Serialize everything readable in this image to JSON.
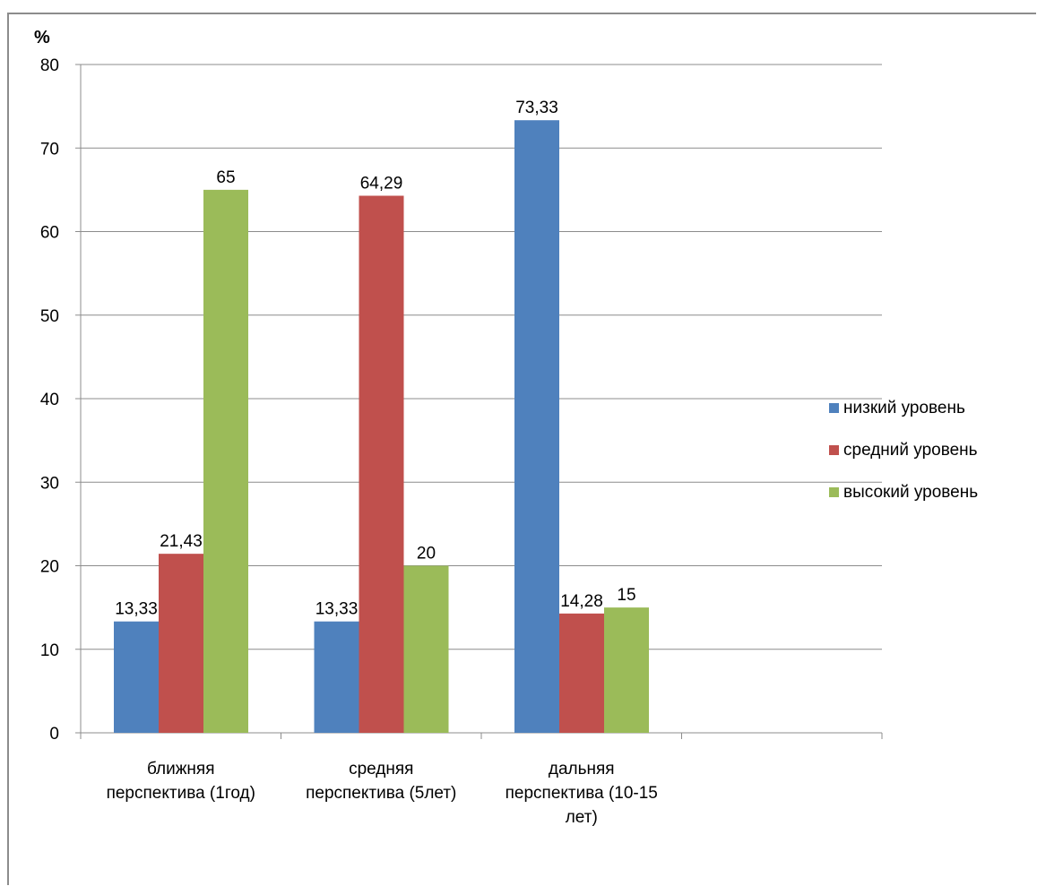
{
  "chart_data": {
    "type": "bar",
    "ylabel": "%",
    "ylim": [
      0,
      80
    ],
    "yticks": [
      0,
      10,
      20,
      30,
      40,
      50,
      60,
      70,
      80
    ],
    "grid": true,
    "legend_position": "right",
    "categories": [
      [
        "ближняя",
        "перспектива (1год)"
      ],
      [
        "средняя",
        "перспектива (5лет)"
      ],
      [
        "дальняя",
        "перспектива (10-15",
        "лет)"
      ]
    ],
    "empty_category_slots": 1,
    "series": [
      {
        "name": "низкий уровень",
        "color": "#4f81bd",
        "values": [
          13.33,
          13.33,
          73.33
        ],
        "labels": [
          "13,33",
          "13,33",
          "73,33"
        ]
      },
      {
        "name": "средний уровень",
        "color": "#c0504d",
        "values": [
          21.43,
          64.29,
          14.28
        ],
        "labels": [
          "21,43",
          "64,29",
          "14,28"
        ]
      },
      {
        "name": "высокий уровень",
        "color": "#9bbb59",
        "values": [
          65,
          20,
          15
        ],
        "labels": [
          "65",
          "20",
          "15"
        ]
      }
    ]
  }
}
